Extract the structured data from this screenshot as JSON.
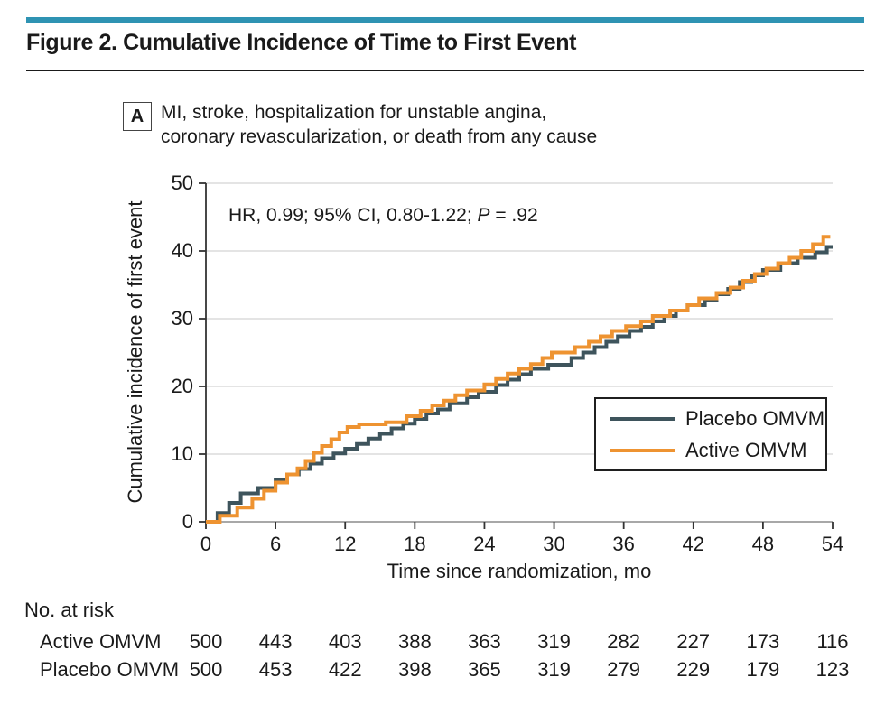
{
  "header": {
    "title": "Figure 2. Cumulative Incidence of Time to First Event"
  },
  "panel": {
    "label": "A",
    "description": "MI, stroke, hospitalization for unstable angina, coronary revascularization, or death from any cause"
  },
  "annotation": {
    "hr_prefix": "HR, 0.99; 95% CI, 0.80-1.22; ",
    "p_label": "P",
    "p_rest": " = .92"
  },
  "colors": {
    "accent_bar": "#2e93b3",
    "placebo_line": "#3e545c",
    "active_line": "#ee9331",
    "gridline": "#dcdcdc",
    "x_axis_line": "#8c8c8c",
    "y_axis_line": "#333333",
    "tick": "#333333",
    "text": "#1a1a1a"
  },
  "chart_data": {
    "type": "line",
    "subtype": "step-cumulative-incidence",
    "title": "Cumulative Incidence of Time to First Event (Panel A)",
    "xlabel": "Time since randomization, mo",
    "ylabel": "Cumulative incidence of first event",
    "xlim": [
      0,
      54
    ],
    "ylim": [
      0,
      50
    ],
    "xticks": [
      0,
      6,
      12,
      18,
      24,
      30,
      36,
      42,
      48,
      54
    ],
    "yticks": [
      0,
      10,
      20,
      30,
      40,
      50
    ],
    "grid": "horizontal",
    "legend_position": "lower right",
    "series": [
      {
        "name": "Placebo OMVM",
        "color": "#3e545c",
        "end_month": 54,
        "steps": [
          [
            0,
            0
          ],
          [
            1,
            1.3
          ],
          [
            2,
            2.8
          ],
          [
            3,
            4.2
          ],
          [
            4.5,
            5.0
          ],
          [
            6,
            6.2
          ],
          [
            7,
            7.0
          ],
          [
            8,
            7.8
          ],
          [
            9,
            8.6
          ],
          [
            10,
            9.4
          ],
          [
            11,
            10.1
          ],
          [
            12,
            10.8
          ],
          [
            13,
            11.5
          ],
          [
            14,
            12.3
          ],
          [
            15,
            13.0
          ],
          [
            16,
            13.8
          ],
          [
            17,
            14.5
          ],
          [
            18,
            15.2
          ],
          [
            19,
            16.0
          ],
          [
            20,
            16.6
          ],
          [
            21,
            17.5
          ],
          [
            22.5,
            18.4
          ],
          [
            23.5,
            19.2
          ],
          [
            25,
            20.2
          ],
          [
            26,
            21.0
          ],
          [
            27,
            21.8
          ],
          [
            28,
            22.6
          ],
          [
            29.5,
            23.2
          ],
          [
            31.5,
            24.2
          ],
          [
            32.5,
            25.0
          ],
          [
            33.5,
            25.8
          ],
          [
            34.5,
            26.6
          ],
          [
            35.5,
            27.4
          ],
          [
            36.5,
            28.2
          ],
          [
            37.5,
            28.8
          ],
          [
            38.5,
            29.6
          ],
          [
            39.5,
            30.4
          ],
          [
            40.5,
            31.2
          ],
          [
            41.5,
            32.0
          ],
          [
            43,
            32.8
          ],
          [
            44,
            33.6
          ],
          [
            45,
            34.4
          ],
          [
            46,
            35.4
          ],
          [
            47,
            36.4
          ],
          [
            48,
            37.2
          ],
          [
            49.5,
            38.2
          ],
          [
            51,
            39.0
          ],
          [
            52.5,
            39.8
          ],
          [
            53.5,
            40.6
          ]
        ]
      },
      {
        "name": "Active OMVM",
        "color": "#ee9331",
        "end_month": 53.8,
        "steps": [
          [
            0,
            0
          ],
          [
            1.2,
            0.9
          ],
          [
            2.7,
            2.1
          ],
          [
            4,
            3.4
          ],
          [
            5,
            4.6
          ],
          [
            6,
            5.8
          ],
          [
            7,
            7.0
          ],
          [
            7.9,
            7.9
          ],
          [
            8.6,
            9.0
          ],
          [
            9.3,
            10.2
          ],
          [
            10,
            11.2
          ],
          [
            10.8,
            12.2
          ],
          [
            11.5,
            13.2
          ],
          [
            12.2,
            14.0
          ],
          [
            13.2,
            14.4
          ],
          [
            15.5,
            14.7
          ],
          [
            17.3,
            15.6
          ],
          [
            18.5,
            16.4
          ],
          [
            19.5,
            17.2
          ],
          [
            20.5,
            17.9
          ],
          [
            21.5,
            18.7
          ],
          [
            22.5,
            19.4
          ],
          [
            24,
            20.3
          ],
          [
            25,
            21.1
          ],
          [
            26,
            21.9
          ],
          [
            27,
            22.6
          ],
          [
            28,
            23.3
          ],
          [
            29,
            24.2
          ],
          [
            29.8,
            25.0
          ],
          [
            31.8,
            25.8
          ],
          [
            33,
            26.6
          ],
          [
            34,
            27.4
          ],
          [
            35,
            28.2
          ],
          [
            36.2,
            28.9
          ],
          [
            37.5,
            29.6
          ],
          [
            38.5,
            30.4
          ],
          [
            40,
            31.2
          ],
          [
            41.5,
            32.0
          ],
          [
            42.5,
            33.0
          ],
          [
            44,
            33.8
          ],
          [
            45.2,
            34.6
          ],
          [
            46.3,
            35.6
          ],
          [
            47.3,
            36.6
          ],
          [
            48.3,
            37.4
          ],
          [
            49.3,
            38.2
          ],
          [
            50.3,
            39.0
          ],
          [
            51.3,
            40.0
          ],
          [
            52.3,
            41.0
          ],
          [
            53.2,
            42.1
          ]
        ]
      }
    ],
    "legend_entries": [
      "Placebo OMVM",
      "Active OMVM"
    ]
  },
  "risk_table": {
    "title": "No. at risk",
    "months": [
      0,
      6,
      12,
      18,
      24,
      30,
      36,
      42,
      48,
      54
    ],
    "rows": [
      {
        "label": "Active OMVM",
        "values": [
          "500",
          "443",
          "403",
          "388",
          "363",
          "319",
          "282",
          "227",
          "173",
          "116"
        ]
      },
      {
        "label": "Placebo OMVM",
        "values": [
          "500",
          "453",
          "422",
          "398",
          "365",
          "319",
          "279",
          "229",
          "179",
          "123"
        ]
      }
    ]
  }
}
